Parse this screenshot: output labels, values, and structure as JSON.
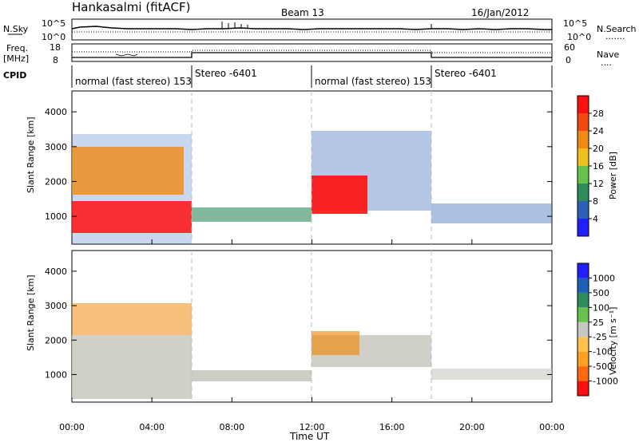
{
  "header": {
    "station": "Hankasalmi (fitACF)",
    "beam": "Beam 13",
    "date": "16/Jan/2012"
  },
  "strip_panel": {
    "left_label_top": "N.Sky",
    "left_tick_top": "10^5",
    "left_tick_bottom": "10^0",
    "right_tick_top": "10^5",
    "right_tick_bottom": "10^0",
    "right_label": "N.Search",
    "right_label_line": "......."
  },
  "freq_panel": {
    "label_line1": "Freq.",
    "label_line2": "[MHz]",
    "tick_top": "18",
    "tick_bottom": "8",
    "right_tick_top": "60",
    "right_tick_bottom": "0",
    "right_label": "Nave",
    "right_label_line": "...."
  },
  "cpid": {
    "label": "CPID",
    "segments": [
      {
        "text": "normal (fast stereo) 153"
      },
      {
        "text": "Stereo -6401"
      },
      {
        "text": "normal (fast stereo) 153"
      },
      {
        "text": "Stereo -6401"
      }
    ]
  },
  "colors": {
    "power": [
      "#1f1fff",
      "#2c5fb8",
      "#2f8a5c",
      "#66c24a",
      "#f0c020",
      "#f08a10",
      "#f04a10",
      "#ff1010"
    ],
    "velocity": [
      "#ff1010",
      "#ff6a10",
      "#ffa020",
      "#ffc24a",
      "#c8c8c0",
      "#66c24a",
      "#2f8a5c",
      "#1f5fb8",
      "#1f1fff"
    ]
  },
  "chart_data": [
    {
      "type": "heatmap",
      "title": "Power",
      "ylabel": "Slant Range [km]",
      "xlabel": "Time UT",
      "xlim": [
        "00:00",
        "00:00"
      ],
      "ylim": [
        200,
        4600
      ],
      "y_ticks": [
        "1000",
        "2000",
        "3000",
        "4000"
      ],
      "x_ticks": [
        "00:00",
        "04:00",
        "08:00",
        "12:00",
        "16:00",
        "20:00",
        "00:00"
      ],
      "colorbar_label": "Power [dB]",
      "colorbar_ticks": [
        "4",
        "8",
        "12",
        "16",
        "20",
        "24",
        "28"
      ],
      "mode_boundaries_ut": [
        "06:00",
        "12:00",
        "18:00"
      ]
    },
    {
      "type": "heatmap",
      "title": "Velocity",
      "ylabel": "Slant Range [km]",
      "xlabel": "Time UT",
      "xlim": [
        "00:00",
        "00:00"
      ],
      "ylim": [
        200,
        4600
      ],
      "y_ticks": [
        "1000",
        "2000",
        "3000",
        "4000"
      ],
      "x_ticks": [
        "00:00",
        "04:00",
        "08:00",
        "12:00",
        "16:00",
        "20:00",
        "00:00"
      ],
      "colorbar_label": "Velocity [m s⁻¹]",
      "colorbar_ticks": [
        "-1000",
        "-500",
        "-100",
        "-25",
        "25",
        "100",
        "500",
        "1000"
      ],
      "mode_boundaries_ut": [
        "06:00",
        "12:00",
        "18:00"
      ]
    }
  ],
  "xaxis": {
    "ticks": [
      "00:00",
      "04:00",
      "08:00",
      "12:00",
      "16:00",
      "20:00",
      "00:00"
    ],
    "label": "Time UT"
  }
}
